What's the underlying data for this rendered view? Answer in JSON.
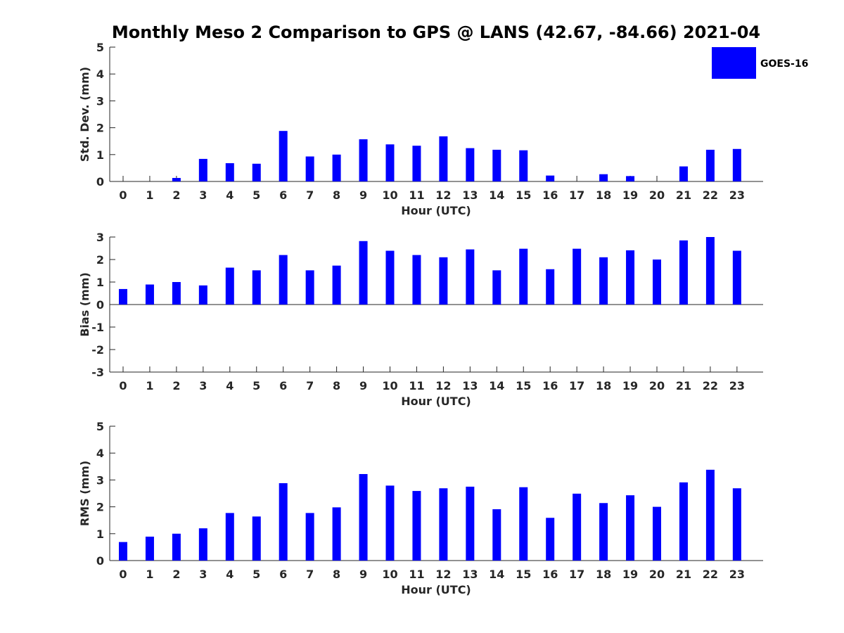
{
  "figure": {
    "title": "Monthly Meso 2 Comparison to GPS @ LANS (42.67, -84.66) 2021-04"
  },
  "legend": {
    "label": "GOES-16",
    "color": "#0000ff"
  },
  "chart_data": [
    {
      "type": "bar",
      "name": "std-dev",
      "xlabel": "Hour (UTC)",
      "ylabel": "Std. Dev. (mm)",
      "ylim": [
        0,
        5
      ],
      "yticks": [
        0,
        1,
        2,
        3,
        4,
        5
      ],
      "zero_line": false,
      "categories": [
        "0",
        "1",
        "2",
        "3",
        "4",
        "5",
        "6",
        "7",
        "8",
        "9",
        "10",
        "11",
        "12",
        "13",
        "14",
        "15",
        "16",
        "17",
        "18",
        "19",
        "20",
        "21",
        "22",
        "23"
      ],
      "series": [
        {
          "name": "GOES-16",
          "color": "#0000ff",
          "values": [
            0,
            0,
            0.13,
            0.84,
            0.68,
            0.66,
            1.88,
            0.93,
            1.0,
            1.57,
            1.38,
            1.33,
            1.68,
            1.24,
            1.18,
            1.16,
            0.22,
            0,
            0.27,
            0.2,
            0,
            0.56,
            1.18,
            1.21
          ]
        }
      ]
    },
    {
      "type": "bar",
      "name": "bias",
      "xlabel": "Hour (UTC)",
      "ylabel": "Bias (mm)",
      "ylim": [
        -3,
        3
      ],
      "yticks": [
        -3,
        -2,
        -1,
        0,
        1,
        2,
        3
      ],
      "zero_line": true,
      "categories": [
        "0",
        "1",
        "2",
        "3",
        "4",
        "5",
        "6",
        "7",
        "8",
        "9",
        "10",
        "11",
        "12",
        "13",
        "14",
        "15",
        "16",
        "17",
        "18",
        "19",
        "20",
        "21",
        "22",
        "23"
      ],
      "series": [
        {
          "name": "GOES-16",
          "color": "#0000ff",
          "values": [
            0.69,
            0.89,
            1.0,
            0.85,
            1.64,
            1.52,
            2.2,
            1.52,
            1.73,
            2.82,
            2.39,
            2.2,
            2.1,
            2.45,
            1.52,
            2.48,
            1.57,
            2.48,
            2.1,
            2.41,
            2.0,
            2.85,
            3.0,
            2.39
          ]
        }
      ]
    },
    {
      "type": "bar",
      "name": "rms",
      "xlabel": "Hour (UTC)",
      "ylabel": "RMS (mm)",
      "ylim": [
        0,
        5
      ],
      "yticks": [
        0,
        1,
        2,
        3,
        4,
        5
      ],
      "zero_line": false,
      "categories": [
        "0",
        "1",
        "2",
        "3",
        "4",
        "5",
        "6",
        "7",
        "8",
        "9",
        "10",
        "11",
        "12",
        "13",
        "14",
        "15",
        "16",
        "17",
        "18",
        "19",
        "20",
        "21",
        "22",
        "23"
      ],
      "series": [
        {
          "name": "GOES-16",
          "color": "#0000ff",
          "values": [
            0.69,
            0.89,
            1.0,
            1.2,
            1.77,
            1.64,
            2.88,
            1.77,
            1.98,
            3.22,
            2.79,
            2.59,
            2.69,
            2.75,
            1.91,
            2.73,
            1.59,
            2.49,
            2.14,
            2.43,
            2.0,
            2.91,
            3.38,
            2.69
          ]
        }
      ]
    }
  ]
}
